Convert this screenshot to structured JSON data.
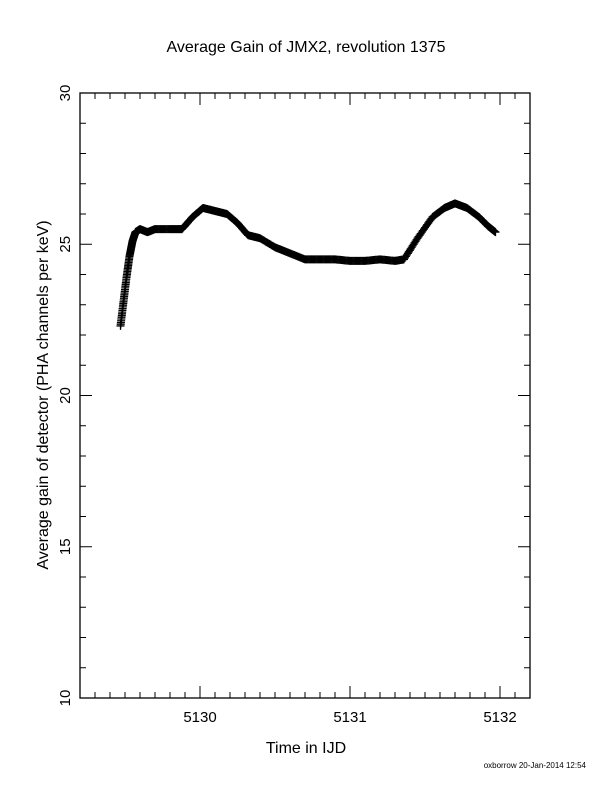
{
  "chart_data": {
    "type": "scatter",
    "title": "Average Gain of JMX2, revolution 1375",
    "xlabel": "Time in IJD",
    "ylabel": "Average gain of detector (PHA channels per keV)",
    "xlim": [
      5129.2,
      5132.2
    ],
    "ylim": [
      10,
      30
    ],
    "x_ticks": [
      5130,
      5131,
      5132
    ],
    "x_tick_labels": [
      "5130",
      "5131",
      "5132"
    ],
    "y_ticks": [
      10,
      15,
      20,
      25,
      30
    ],
    "y_tick_labels": [
      "10",
      "15",
      "20",
      "25",
      "30"
    ],
    "grid": false,
    "marker": "plus",
    "color": "#000000",
    "series": [
      {
        "x": [
          5129.47,
          5129.49,
          5129.51,
          5129.53,
          5129.55,
          5129.57,
          5129.6,
          5129.65,
          5129.7,
          5129.8,
          5129.88,
          5129.95,
          5130.02,
          5130.1,
          5130.18,
          5130.25,
          5130.32,
          5130.4,
          5130.5,
          5130.6,
          5130.7,
          5130.8,
          5130.9,
          5131.0,
          5131.1,
          5131.2,
          5131.3,
          5131.36,
          5131.45,
          5131.55,
          5131.63,
          5131.7,
          5131.78,
          5131.86,
          5131.92,
          5131.97
        ],
        "y": [
          22.3,
          23.1,
          23.9,
          24.6,
          25.1,
          25.4,
          25.5,
          25.4,
          25.5,
          25.5,
          25.5,
          25.9,
          26.2,
          26.1,
          26.0,
          25.7,
          25.3,
          25.2,
          24.9,
          24.7,
          24.5,
          24.5,
          24.5,
          24.45,
          24.45,
          24.5,
          24.45,
          24.5,
          25.2,
          25.9,
          26.2,
          26.35,
          26.2,
          25.9,
          25.6,
          25.4
        ]
      }
    ]
  },
  "footer": "oxborrow 20-Jan-2014 12:54"
}
